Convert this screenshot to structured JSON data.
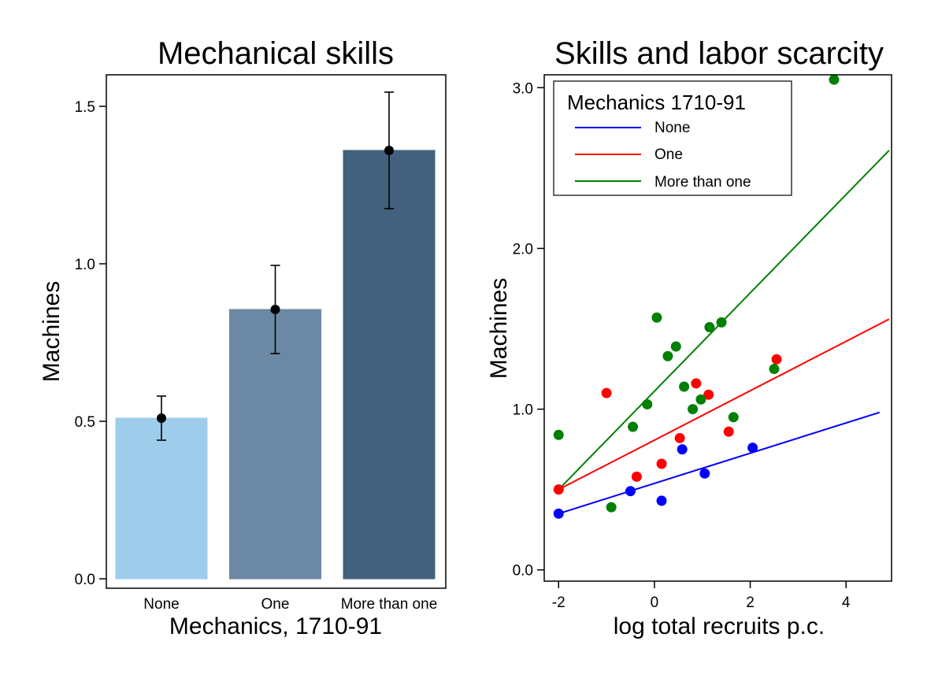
{
  "chart_data": [
    {
      "type": "bar",
      "title": "Mechanical skills",
      "xlabel": "Mechanics, 1710-91",
      "ylabel": "Machines",
      "categories": [
        "None",
        "One",
        "More than one"
      ],
      "values": [
        0.51,
        0.855,
        1.36
      ],
      "error_low": [
        0.44,
        0.715,
        1.175
      ],
      "error_high": [
        0.58,
        0.995,
        1.545
      ],
      "colors": [
        "#9dcdeb",
        "#6b89a5",
        "#43617c"
      ],
      "ylim": [
        -0.03,
        1.6
      ],
      "yticks": [
        0.0,
        0.5,
        1.0,
        1.5
      ],
      "ytick_labels": [
        "0.0",
        "0.5",
        "1.0",
        "1.5"
      ],
      "grid": false
    },
    {
      "type": "scatter",
      "title": "Skills and labor scarcity",
      "xlabel": "log total recruits p.c.",
      "ylabel": "Machines",
      "xlim": [
        -2.3,
        4.95
      ],
      "ylim": [
        -0.07,
        3.08
      ],
      "xticks": [
        -2,
        0,
        2,
        4
      ],
      "xtick_labels": [
        "-2",
        "0",
        "2",
        "4"
      ],
      "yticks": [
        0.0,
        1.0,
        2.0,
        3.0
      ],
      "ytick_labels": [
        "0.0",
        "1.0",
        "2.0",
        "3.0"
      ],
      "grid": false,
      "legend": {
        "title": "Mechanics 1710-91",
        "position": "top-left",
        "entries": [
          "None",
          "One",
          "More than one"
        ]
      },
      "series": [
        {
          "name": "None",
          "color": "#0000ff",
          "points": [
            [
              -2.0,
              0.35
            ],
            [
              -0.5,
              0.49
            ],
            [
              0.15,
              0.43
            ],
            [
              0.58,
              0.75
            ],
            [
              1.05,
              0.6
            ],
            [
              2.05,
              0.76
            ]
          ],
          "fit_line": [
            [
              -2.0,
              0.35
            ],
            [
              4.7,
              0.98
            ]
          ]
        },
        {
          "name": "One",
          "color": "#ff0000",
          "points": [
            [
              -2.0,
              0.5
            ],
            [
              -1.0,
              1.1
            ],
            [
              -0.37,
              0.58
            ],
            [
              0.15,
              0.66
            ],
            [
              0.53,
              0.82
            ],
            [
              0.87,
              1.16
            ],
            [
              1.13,
              1.09
            ],
            [
              1.55,
              0.86
            ],
            [
              2.55,
              1.31
            ]
          ],
          "fit_line": [
            [
              -2.0,
              0.5
            ],
            [
              4.9,
              1.56
            ]
          ]
        },
        {
          "name": "More than one",
          "color": "#008000",
          "points": [
            [
              -2.0,
              0.84
            ],
            [
              -0.9,
              0.39
            ],
            [
              -0.45,
              0.89
            ],
            [
              -0.15,
              1.03
            ],
            [
              0.05,
              1.57
            ],
            [
              0.28,
              1.33
            ],
            [
              0.45,
              1.39
            ],
            [
              0.62,
              1.14
            ],
            [
              0.8,
              1.0
            ],
            [
              0.97,
              1.06
            ],
            [
              1.15,
              1.51
            ],
            [
              1.4,
              1.54
            ],
            [
              1.65,
              0.95
            ],
            [
              2.5,
              1.25
            ],
            [
              3.75,
              3.05
            ]
          ],
          "fit_line": [
            [
              -2.0,
              0.5
            ],
            [
              4.9,
              2.61
            ]
          ]
        }
      ]
    }
  ]
}
